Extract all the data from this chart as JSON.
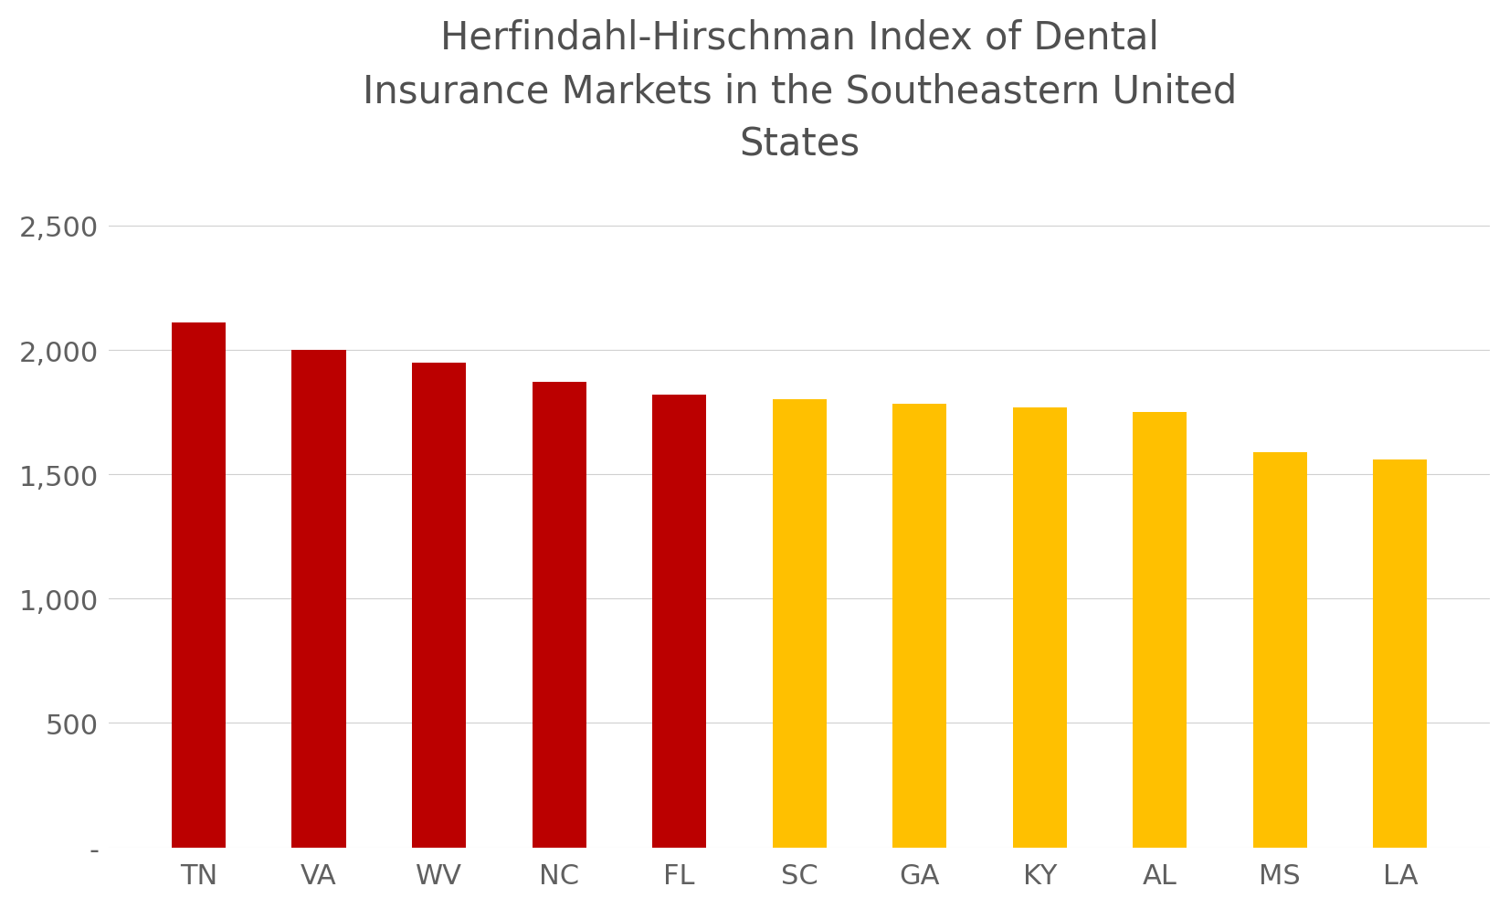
{
  "categories": [
    "TN",
    "VA",
    "WV",
    "NC",
    "FL",
    "SC",
    "GA",
    "KY",
    "AL",
    "MS",
    "LA"
  ],
  "values": [
    2110,
    2000,
    1950,
    1870,
    1820,
    1800,
    1785,
    1770,
    1750,
    1590,
    1560
  ],
  "bar_colors": [
    "#BB0000",
    "#BB0000",
    "#BB0000",
    "#BB0000",
    "#BB0000",
    "#FFC000",
    "#FFC000",
    "#FFC000",
    "#FFC000",
    "#FFC000",
    "#FFC000"
  ],
  "title": "Herfindahl-Hirschman Index of Dental\nInsurance Markets in the Southeastern United\nStates",
  "title_fontsize": 30,
  "title_color": "#505050",
  "tick_color": "#606060",
  "tick_fontsize": 22,
  "background_color": "#FFFFFF",
  "ylim": [
    0,
    2750
  ],
  "yticks": [
    0,
    500,
    1000,
    1500,
    2000,
    2500
  ],
  "ytick_labels": [
    "-",
    "500",
    "1,000",
    "1,500",
    "2,000",
    "2,500"
  ],
  "grid_color": "#D0D0D0",
  "bar_width": 0.45
}
